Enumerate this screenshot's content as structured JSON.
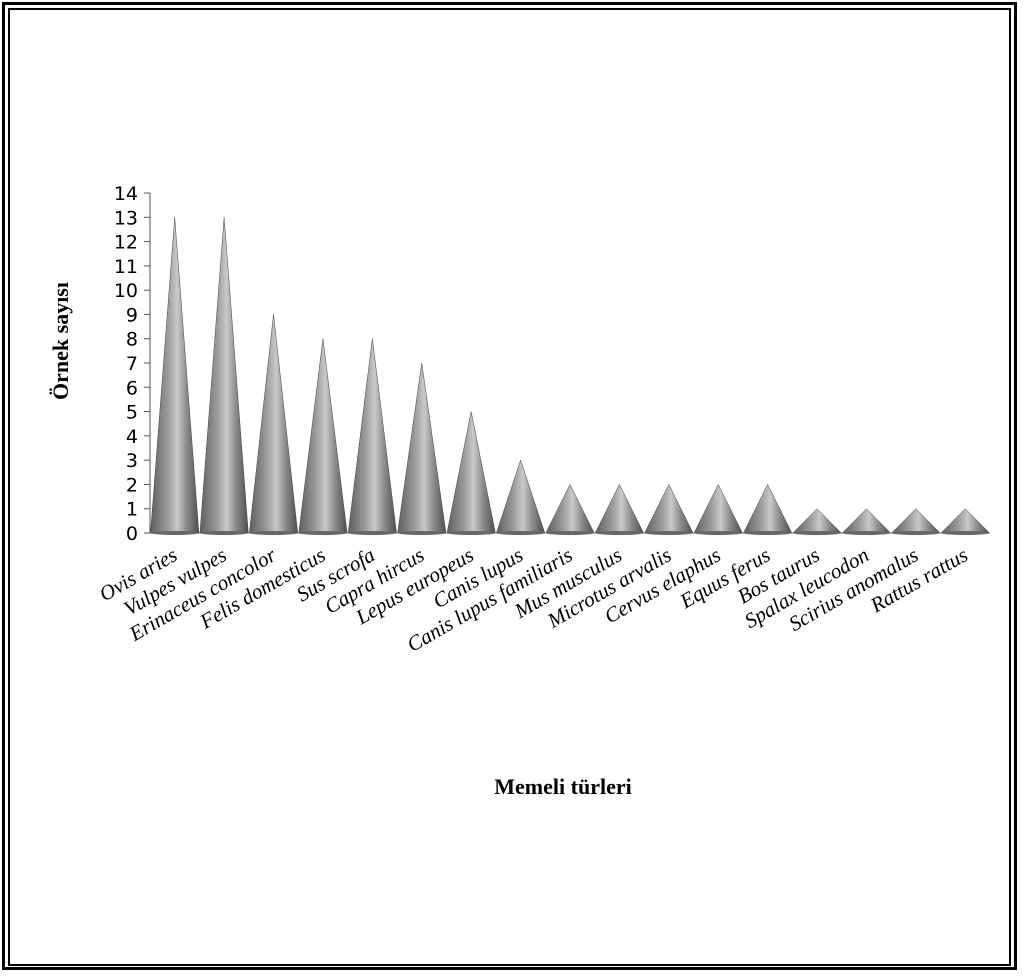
{
  "chart_data": {
    "type": "bar",
    "bar_shape": "cone",
    "xlabel": "Memeli türleri",
    "ylabel": "Örnek sayısı",
    "ylim": [
      0,
      14
    ],
    "yticks": [
      0,
      1,
      2,
      3,
      4,
      5,
      6,
      7,
      8,
      9,
      10,
      11,
      12,
      13,
      14
    ],
    "grid": false,
    "legend": "none",
    "bar_color": "#7a7a7a",
    "categories": [
      "Ovis aries",
      "Vulpes vulpes",
      "Erinaceus concolor",
      "Felis domesticus",
      "Sus scrofa",
      "Capra hircus",
      "Lepus europeus",
      "Canis lupus",
      "Canis lupus familiaris",
      "Mus musculus",
      "Microtus arvalis",
      "Cervus elaphus",
      "Equus ferus",
      "Bos taurus",
      "Spalax leucodon",
      "Scirius anomalus",
      "Rattus rattus"
    ],
    "values": [
      13,
      13,
      9,
      8,
      8,
      7,
      5,
      3,
      2,
      2,
      2,
      2,
      2,
      1,
      1,
      1,
      1
    ]
  }
}
